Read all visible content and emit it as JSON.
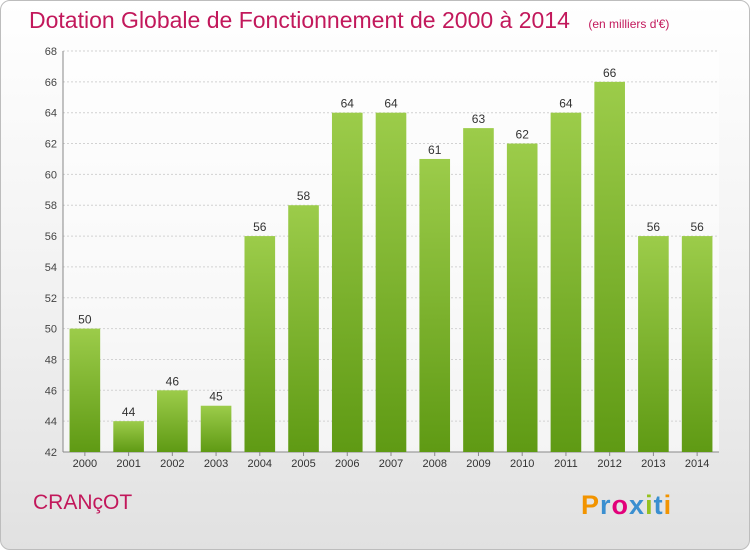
{
  "header": {
    "title": "Dotation Globale de Fonctionnement de 2000 à 2014",
    "unit": "(en milliers d'€)"
  },
  "footer": {
    "commune": "CRANçOT",
    "logo": "Proxiti",
    "logo_colors": [
      "#f29400",
      "#3a8fd0",
      "#e2007a",
      "#3a8fd0",
      "#95c11f",
      "#3a8fd0",
      "#f29400"
    ]
  },
  "colors": {
    "bar_top": "#9ccc4a",
    "bar_bottom": "#5f9a14",
    "title": "#c2185b",
    "grid": "#d2d2d2"
  },
  "chart_data": {
    "type": "bar",
    "categories": [
      "2000",
      "2001",
      "2002",
      "2003",
      "2004",
      "2005",
      "2006",
      "2007",
      "2008",
      "2009",
      "2010",
      "2011",
      "2012",
      "2013",
      "2014"
    ],
    "values": [
      50,
      44,
      46,
      45,
      56,
      58,
      64,
      64,
      61,
      63,
      62,
      64,
      66,
      56,
      56
    ],
    "title": "Dotation Globale de Fonctionnement de 2000 à 2014",
    "subtitle": "(en milliers d'€)",
    "ylim": [
      42,
      68
    ],
    "yticks": [
      42,
      44,
      46,
      48,
      50,
      52,
      54,
      56,
      58,
      60,
      62,
      64,
      66,
      68
    ],
    "grid": true,
    "data_labels": true
  }
}
